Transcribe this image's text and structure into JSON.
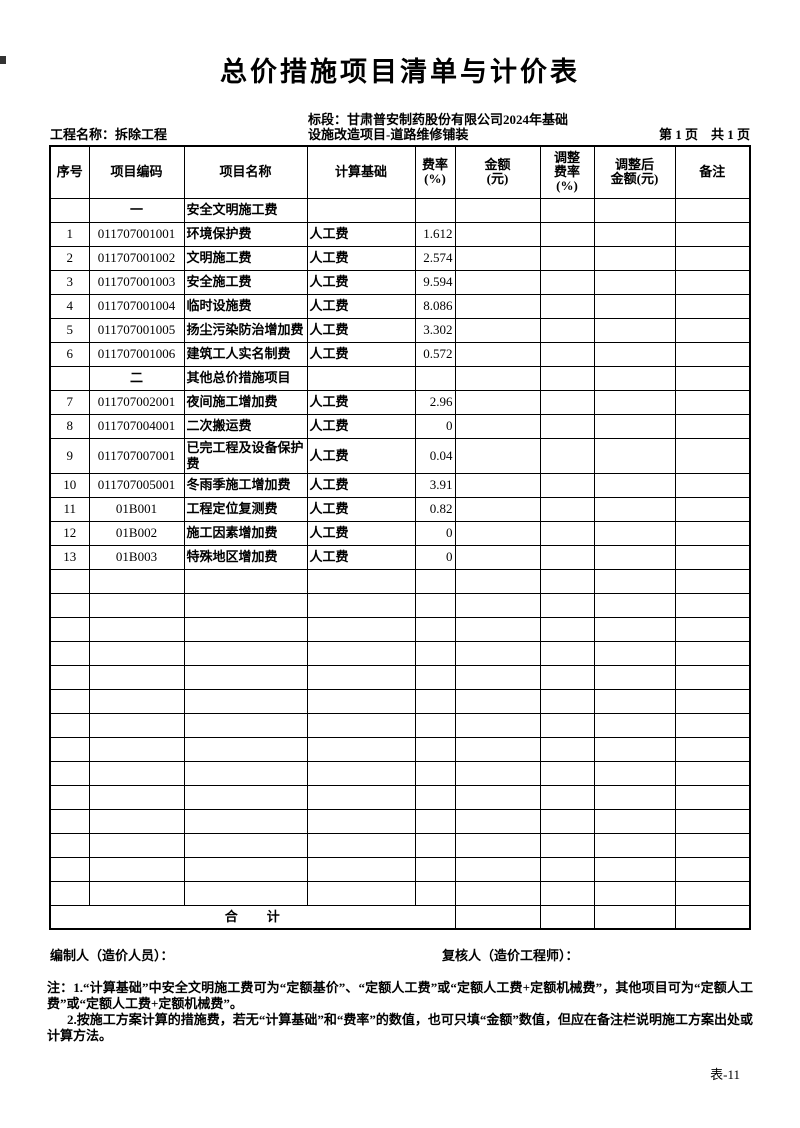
{
  "page": {
    "title": "总价措施项目清单与计价表",
    "project_label": "工程名称：拆除工程",
    "section_line1": "标段：甘肃普安制药股份有限公司2024年基础",
    "section_line2": "设施改造项目-道路维修铺装",
    "page_info": "第 1 页　共 1 页",
    "form_code": "表-11"
  },
  "table": {
    "headers": [
      "序号",
      "项目编码",
      "项目名称",
      "计算基础",
      "费率\n(%)",
      "金额\n(元)",
      "调整\n费率\n(%)",
      "调整后\n金额(元)",
      "备注"
    ],
    "rows": [
      {
        "type": "group",
        "seq": "",
        "code": "一",
        "name": "安全文明施工费",
        "basis": "",
        "rate": "",
        "amount": "",
        "adj_rate": "",
        "adj_amount": "",
        "note": ""
      },
      {
        "type": "item",
        "seq": "1",
        "code": "011707001001",
        "name": "环境保护费",
        "basis": "人工费",
        "rate": "1.612",
        "amount": "",
        "adj_rate": "",
        "adj_amount": "",
        "note": ""
      },
      {
        "type": "item",
        "seq": "2",
        "code": "011707001002",
        "name": "文明施工费",
        "basis": "人工费",
        "rate": "2.574",
        "amount": "",
        "adj_rate": "",
        "adj_amount": "",
        "note": ""
      },
      {
        "type": "item",
        "seq": "3",
        "code": "011707001003",
        "name": "安全施工费",
        "basis": "人工费",
        "rate": "9.594",
        "amount": "",
        "adj_rate": "",
        "adj_amount": "",
        "note": ""
      },
      {
        "type": "item",
        "seq": "4",
        "code": "011707001004",
        "name": "临时设施费",
        "basis": "人工费",
        "rate": "8.086",
        "amount": "",
        "adj_rate": "",
        "adj_amount": "",
        "note": ""
      },
      {
        "type": "item",
        "seq": "5",
        "code": "011707001005",
        "name": "扬尘污染防治增加费",
        "basis": "人工费",
        "rate": "3.302",
        "amount": "",
        "adj_rate": "",
        "adj_amount": "",
        "note": ""
      },
      {
        "type": "item",
        "seq": "6",
        "code": "011707001006",
        "name": "建筑工人实名制费",
        "basis": "人工费",
        "rate": "0.572",
        "amount": "",
        "adj_rate": "",
        "adj_amount": "",
        "note": ""
      },
      {
        "type": "group",
        "seq": "",
        "code": "二",
        "name": "其他总价措施项目",
        "basis": "",
        "rate": "",
        "amount": "",
        "adj_rate": "",
        "adj_amount": "",
        "note": ""
      },
      {
        "type": "item",
        "seq": "7",
        "code": "011707002001",
        "name": "夜间施工增加费",
        "basis": "人工费",
        "rate": "2.96",
        "amount": "",
        "adj_rate": "",
        "adj_amount": "",
        "note": ""
      },
      {
        "type": "item",
        "seq": "8",
        "code": "011707004001",
        "name": "二次搬运费",
        "basis": "人工费",
        "rate": "0",
        "amount": "",
        "adj_rate": "",
        "adj_amount": "",
        "note": ""
      },
      {
        "type": "item",
        "seq": "9",
        "code": "011707007001",
        "name": "已完工程及设备保护费",
        "basis": "人工费",
        "rate": "0.04",
        "amount": "",
        "adj_rate": "",
        "adj_amount": "",
        "note": ""
      },
      {
        "type": "item",
        "seq": "10",
        "code": "011707005001",
        "name": "冬雨季施工增加费",
        "basis": "人工费",
        "rate": "3.91",
        "amount": "",
        "adj_rate": "",
        "adj_amount": "",
        "note": ""
      },
      {
        "type": "item",
        "seq": "11",
        "code": "01B001",
        "name": "工程定位复测费",
        "basis": "人工费",
        "rate": "0.82",
        "amount": "",
        "adj_rate": "",
        "adj_amount": "",
        "note": ""
      },
      {
        "type": "item",
        "seq": "12",
        "code": "01B002",
        "name": "施工因素增加费",
        "basis": "人工费",
        "rate": "0",
        "amount": "",
        "adj_rate": "",
        "adj_amount": "",
        "note": ""
      },
      {
        "type": "item",
        "seq": "13",
        "code": "01B003",
        "name": "特殊地区增加费",
        "basis": "人工费",
        "rate": "0",
        "amount": "",
        "adj_rate": "",
        "adj_amount": "",
        "note": ""
      }
    ],
    "empty_row_count": 14,
    "total_label": "合　　计"
  },
  "footer": {
    "preparer": "编制人（造价人员）：",
    "reviewer": "复核人（造价工程师）：",
    "note1": "注：1.“计算基础”中安全文明施工费可为“定额基价”、“定额人工费”或“定额人工费+定额机械费”，其他项目可为“定额人工费”或“定额人工费+定额机械费”。",
    "note2": "2.按施工方案计算的措施费，若无“计算基础”和“费率”的数值，也可只填“金额”数值，但应在备注栏说明施工方案出处或计算方法。"
  }
}
